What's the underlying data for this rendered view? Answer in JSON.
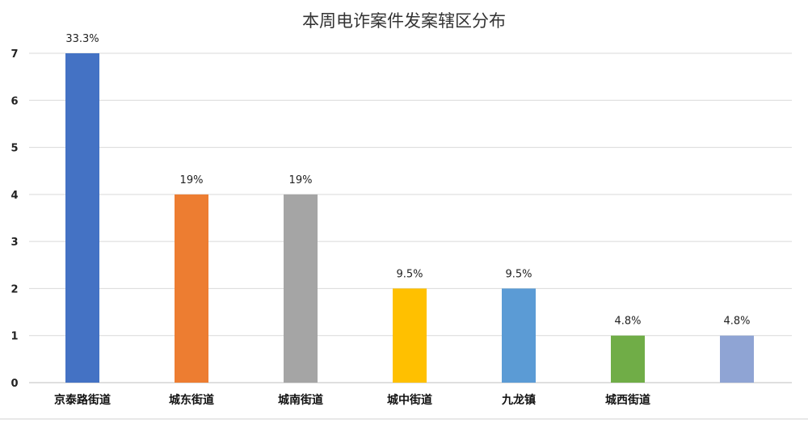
{
  "chart_data": {
    "type": "bar",
    "title": "本周电诈案件发案辖区分布",
    "categories": [
      "京泰路街道",
      "城东街道",
      "城南街道",
      "城中街道",
      "九龙镇",
      "城西街道",
      ""
    ],
    "values": [
      7,
      4,
      4,
      2,
      2,
      1,
      1
    ],
    "data_labels": [
      "33.3%",
      "19%",
      "19%",
      "9.5%",
      "9.5%",
      "4.8%",
      "4.8%"
    ],
    "colors": [
      "#4472C4",
      "#ED7D31",
      "#A5A5A5",
      "#FFC000",
      "#5B9BD5",
      "#70AD47",
      "#8FA4D4"
    ],
    "ylim": [
      0,
      7
    ],
    "yticks": [
      "0",
      "1",
      "2",
      "3",
      "4",
      "5",
      "6",
      "7"
    ],
    "grid": true,
    "legend": "none",
    "xlabel": "",
    "ylabel": ""
  }
}
